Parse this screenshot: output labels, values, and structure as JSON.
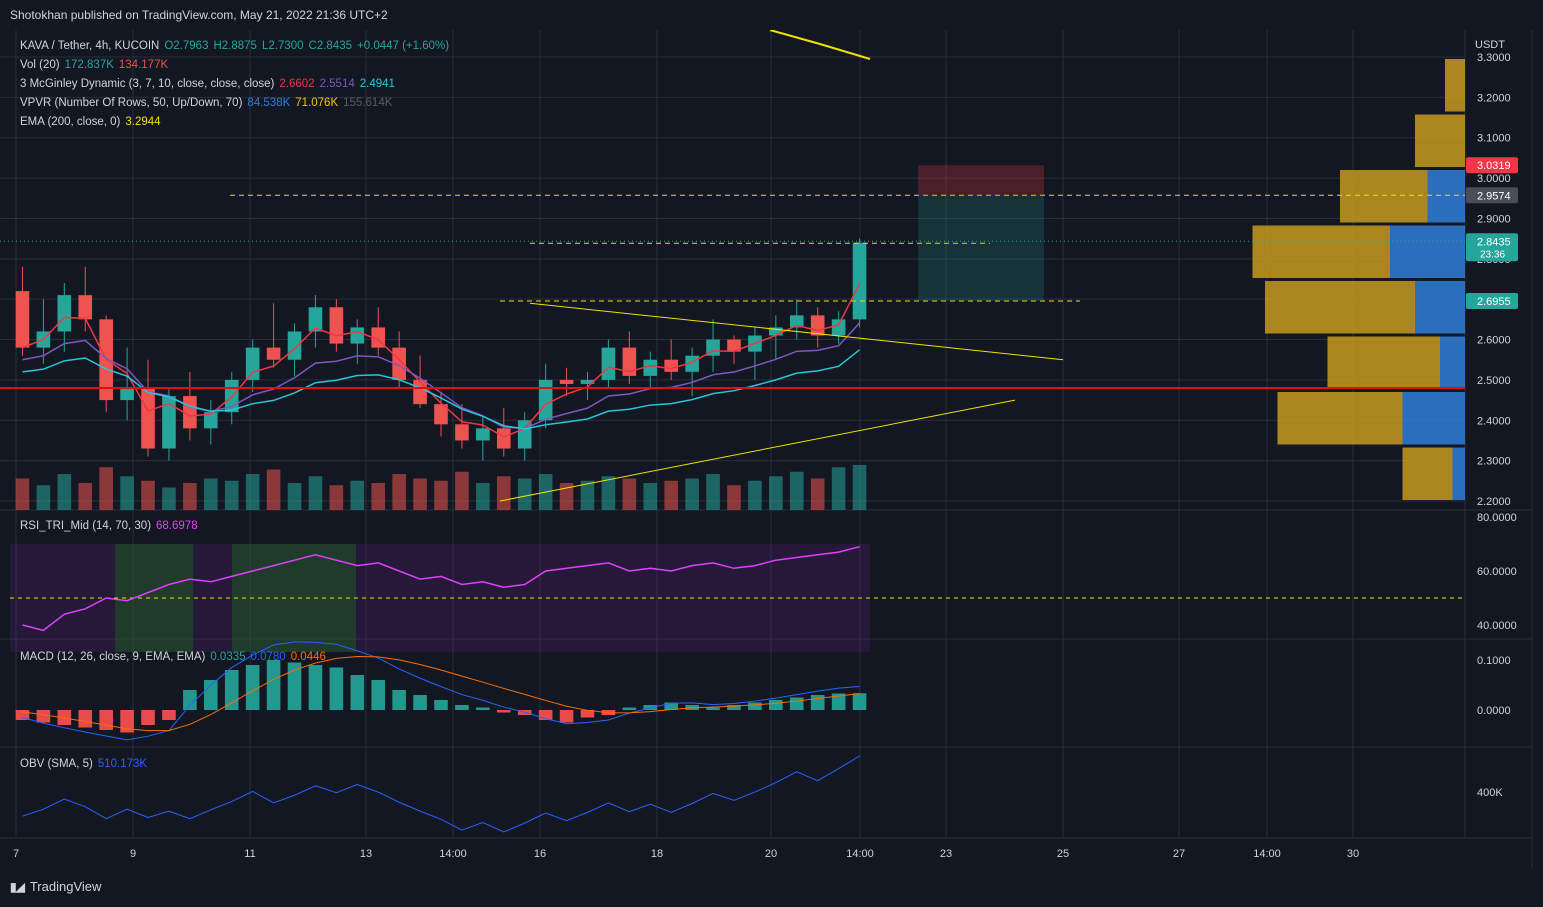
{
  "header": {
    "published": "Shotokhan published on TradingView.com, May 21, 2022 21:36 UTC+2"
  },
  "footer": {
    "brand": "TradingView"
  },
  "colors": {
    "bg": "#131722",
    "up": "#26a69a",
    "down": "#ef5350",
    "grid": "#2a2e39",
    "text": "#d1d4dc",
    "ema": "#f0e100",
    "mcg1": "#f23645",
    "mcg2": "#7e57c2",
    "mcg3": "#26c6da",
    "rsi": "#e040fb",
    "obv": "#2962ff",
    "poc": "#e01010",
    "vpUp": "#2f7ed8",
    "vpDown": "#c79a1f"
  },
  "legend": {
    "main": {
      "symbol": "KAVA / Tether, 4h, KUCOIN",
      "o": "O2.7963",
      "h": "H2.8875",
      "l": "L2.7300",
      "c": "C2.8435",
      "chg": "+0.0447 (+1.60%)"
    },
    "vol": {
      "label": "Vol (20)",
      "v1": "172.837K",
      "v2": "134.177K"
    },
    "mcg": {
      "label": "3 McGinley Dynamic (3, 7, 10, close, close, close)",
      "v1": "2.6602",
      "v2": "2.5514",
      "v3": "2.4941"
    },
    "vpvr": {
      "label": "VPVR (Number Of Rows, 50, Up/Down, 70)",
      "v1": "84.538K",
      "v2": "71.076K",
      "v3": "155.614K"
    },
    "ema": {
      "label": "EMA (200, close, 0)",
      "v1": "3.2944"
    },
    "rsi": {
      "label": "RSI_TRI_Mid (14, 70, 30)",
      "v1": "68.6978"
    },
    "macd": {
      "label": "MACD (12, 26, close, 9, EMA, EMA)",
      "v1": "0.0335",
      "v2": "0.0780",
      "v3": "0.0446"
    },
    "obv": {
      "label": "OBV (SMA, 5)",
      "v1": "510.173K"
    }
  },
  "chart_data": {
    "type": "candlestick",
    "currency": "USDT",
    "price_axis": {
      "ticks": [
        2.2,
        2.3,
        2.4,
        2.5,
        2.6,
        2.7,
        2.8,
        2.9,
        3.0,
        3.1,
        3.2,
        3.3
      ],
      "labels": [
        "2.2000",
        "2.3000",
        "2.4000",
        "2.5000",
        "2.6000",
        "2.7000",
        "2.8000",
        "2.9000",
        "3.0000",
        "3.1000",
        "3.2000",
        "3.3000"
      ]
    },
    "price_tags": [
      {
        "label": "3.0319",
        "value": 3.0319,
        "color": "#f23645"
      },
      {
        "label": "2.9574",
        "value": 2.9574,
        "color": "#4a4e59"
      },
      {
        "label": "2.8435",
        "sub": "23:36",
        "value": 2.8435,
        "color": "#26a69a"
      },
      {
        "label": "2.6955",
        "value": 2.6955,
        "color": "#26a69a"
      }
    ],
    "time_axis": {
      "labels": [
        "7",
        "9",
        "11",
        "13",
        "14:00",
        "16",
        "18",
        "20",
        "14:00",
        "23",
        "25",
        "27",
        "14:00",
        "30"
      ]
    },
    "candles": [
      [
        2.72,
        2.78,
        2.56,
        2.58
      ],
      [
        2.58,
        2.7,
        2.54,
        2.62
      ],
      [
        2.62,
        2.74,
        2.57,
        2.71
      ],
      [
        2.71,
        2.78,
        2.62,
        2.65
      ],
      [
        2.65,
        2.66,
        2.42,
        2.45
      ],
      [
        2.45,
        2.58,
        2.4,
        2.48
      ],
      [
        2.48,
        2.55,
        2.31,
        2.33
      ],
      [
        2.33,
        2.48,
        2.3,
        2.46
      ],
      [
        2.46,
        2.52,
        2.35,
        2.38
      ],
      [
        2.38,
        2.45,
        2.34,
        2.42
      ],
      [
        2.42,
        2.52,
        2.39,
        2.5
      ],
      [
        2.5,
        2.6,
        2.47,
        2.58
      ],
      [
        2.58,
        2.69,
        2.53,
        2.55
      ],
      [
        2.55,
        2.64,
        2.51,
        2.62
      ],
      [
        2.62,
        2.71,
        2.58,
        2.68
      ],
      [
        2.68,
        2.7,
        2.57,
        2.59
      ],
      [
        2.59,
        2.65,
        2.54,
        2.63
      ],
      [
        2.63,
        2.68,
        2.56,
        2.58
      ],
      [
        2.58,
        2.62,
        2.48,
        2.5
      ],
      [
        2.5,
        2.56,
        2.43,
        2.44
      ],
      [
        2.44,
        2.47,
        2.36,
        2.39
      ],
      [
        2.39,
        2.44,
        2.33,
        2.35
      ],
      [
        2.35,
        2.41,
        2.3,
        2.38
      ],
      [
        2.38,
        2.43,
        2.31,
        2.33
      ],
      [
        2.33,
        2.42,
        2.3,
        2.4
      ],
      [
        2.4,
        2.54,
        2.38,
        2.5
      ],
      [
        2.5,
        2.53,
        2.46,
        2.49
      ],
      [
        2.49,
        2.52,
        2.45,
        2.5
      ],
      [
        2.5,
        2.6,
        2.48,
        2.58
      ],
      [
        2.58,
        2.62,
        2.49,
        2.51
      ],
      [
        2.51,
        2.57,
        2.48,
        2.55
      ],
      [
        2.55,
        2.6,
        2.5,
        2.52
      ],
      [
        2.52,
        2.58,
        2.46,
        2.56
      ],
      [
        2.56,
        2.65,
        2.52,
        2.6
      ],
      [
        2.6,
        2.61,
        2.54,
        2.57
      ],
      [
        2.57,
        2.63,
        2.5,
        2.61
      ],
      [
        2.61,
        2.66,
        2.55,
        2.63
      ],
      [
        2.63,
        2.7,
        2.6,
        2.66
      ],
      [
        2.66,
        2.68,
        2.58,
        2.61
      ],
      [
        2.61,
        2.67,
        2.59,
        2.65
      ],
      [
        2.65,
        2.85,
        2.63,
        2.84
      ]
    ],
    "volume": [
      1.4,
      1.1,
      1.6,
      1.2,
      1.9,
      1.5,
      1.3,
      1.0,
      1.2,
      1.4,
      1.3,
      1.6,
      1.8,
      1.2,
      1.5,
      1.1,
      1.3,
      1.2,
      1.6,
      1.4,
      1.3,
      1.7,
      1.2,
      1.5,
      1.4,
      1.6,
      1.2,
      1.3,
      1.5,
      1.4,
      1.2,
      1.3,
      1.4,
      1.6,
      1.1,
      1.3,
      1.5,
      1.7,
      1.4,
      1.9,
      2.0
    ],
    "rsi": [
      40,
      38,
      44,
      46,
      50,
      49,
      52,
      55,
      57,
      56,
      58,
      60,
      62,
      64,
      66,
      64,
      62,
      63,
      60,
      57,
      58,
      55,
      56,
      54,
      55,
      60,
      61,
      62,
      63,
      60,
      61,
      60,
      62,
      63,
      61,
      62,
      64,
      65,
      66,
      67,
      69
    ],
    "macd_hist": [
      -0.02,
      -0.025,
      -0.03,
      -0.035,
      -0.04,
      -0.045,
      -0.03,
      -0.02,
      0.04,
      0.06,
      0.08,
      0.09,
      0.1,
      0.095,
      0.09,
      0.085,
      0.07,
      0.06,
      0.04,
      0.03,
      0.02,
      0.01,
      0.005,
      -0.005,
      -0.01,
      -0.02,
      -0.025,
      -0.015,
      -0.01,
      0.005,
      0.01,
      0.015,
      0.01,
      0.005,
      0.01,
      0.015,
      0.02,
      0.025,
      0.03,
      0.033,
      0.0335
    ],
    "vpvr_rows": [
      [
        0,
        0.08
      ],
      [
        0,
        0.2
      ],
      [
        0.15,
        0.35
      ],
      [
        0.3,
        0.55
      ],
      [
        0.2,
        0.6
      ],
      [
        0.1,
        0.45
      ],
      [
        0.25,
        0.5
      ],
      [
        0.05,
        0.2
      ]
    ]
  }
}
